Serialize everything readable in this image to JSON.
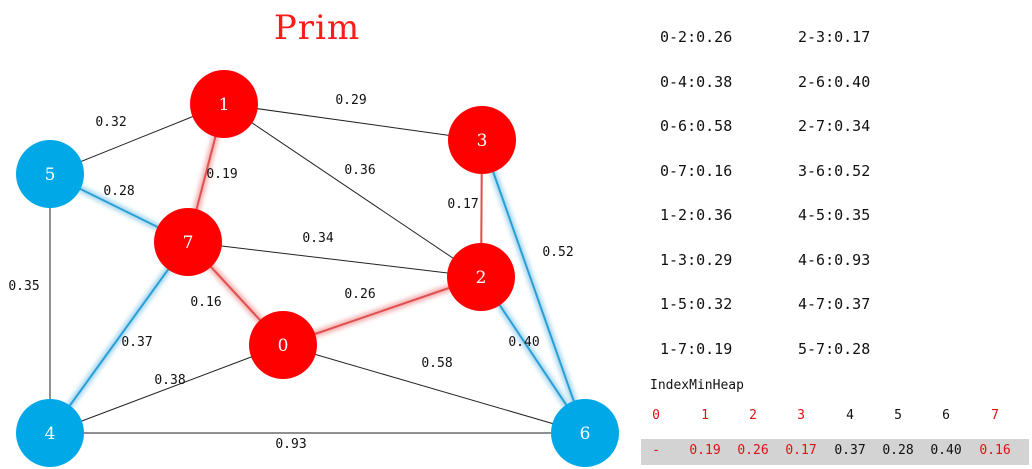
{
  "title": "Prim",
  "colors": {
    "mst_node": "#ff0000",
    "other_node": "#00a8e8",
    "mst_edge": "#e05050",
    "candidate_edge": "#2a9fd6",
    "normal_edge": "#222222",
    "heap_red": "#e01010",
    "heap_row_bg": "#d3d3d3"
  },
  "nodes": [
    {
      "id": "0",
      "status": "mst"
    },
    {
      "id": "1",
      "status": "mst"
    },
    {
      "id": "2",
      "status": "mst"
    },
    {
      "id": "3",
      "status": "mst"
    },
    {
      "id": "4",
      "status": "unvisited"
    },
    {
      "id": "5",
      "status": "unvisited"
    },
    {
      "id": "6",
      "status": "unvisited"
    },
    {
      "id": "7",
      "status": "mst"
    }
  ],
  "edges": [
    {
      "from": "1",
      "to": "5",
      "weight": "0.32",
      "kind": "normal"
    },
    {
      "from": "1",
      "to": "3",
      "weight": "0.29",
      "kind": "normal"
    },
    {
      "from": "1",
      "to": "2",
      "weight": "0.36",
      "kind": "normal"
    },
    {
      "from": "1",
      "to": "7",
      "weight": "0.19",
      "kind": "mst"
    },
    {
      "from": "5",
      "to": "7",
      "weight": "0.28",
      "kind": "candidate"
    },
    {
      "from": "5",
      "to": "4",
      "weight": "0.35",
      "kind": "normal"
    },
    {
      "from": "7",
      "to": "2",
      "weight": "0.34",
      "kind": "normal"
    },
    {
      "from": "7",
      "to": "0",
      "weight": "0.16",
      "kind": "mst"
    },
    {
      "from": "7",
      "to": "4",
      "weight": "0.37",
      "kind": "candidate"
    },
    {
      "from": "3",
      "to": "2",
      "weight": "0.17",
      "kind": "mst"
    },
    {
      "from": "3",
      "to": "6",
      "weight": "0.52",
      "kind": "candidate"
    },
    {
      "from": "0",
      "to": "2",
      "weight": "0.26",
      "kind": "mst"
    },
    {
      "from": "0",
      "to": "4",
      "weight": "0.38",
      "kind": "normal"
    },
    {
      "from": "0",
      "to": "6",
      "weight": "0.58",
      "kind": "normal"
    },
    {
      "from": "2",
      "to": "6",
      "weight": "0.40",
      "kind": "candidate"
    },
    {
      "from": "4",
      "to": "6",
      "weight": "0.93",
      "kind": "normal"
    }
  ],
  "edge_list": [
    "0-2:0.26",
    "0-4:0.38",
    "0-6:0.58",
    "0-7:0.16",
    "1-2:0.36",
    "1-3:0.29",
    "1-5:0.32",
    "1-7:0.19",
    "2-3:0.17",
    "2-6:0.40",
    "2-7:0.34",
    "3-6:0.52",
    "4-5:0.35",
    "4-6:0.93",
    "4-7:0.37",
    "5-7:0.28"
  ],
  "heap": {
    "title": "IndexMinHeap",
    "indices": [
      {
        "text": "0",
        "color": "red"
      },
      {
        "text": "1",
        "color": "red"
      },
      {
        "text": "2",
        "color": "red"
      },
      {
        "text": "3",
        "color": "red"
      },
      {
        "text": "4",
        "color": "black"
      },
      {
        "text": "5",
        "color": "black"
      },
      {
        "text": "6",
        "color": "black"
      },
      {
        "text": "7",
        "color": "red"
      }
    ],
    "values": [
      {
        "text": "-",
        "color": "red"
      },
      {
        "text": "0.19",
        "color": "red"
      },
      {
        "text": "0.26",
        "color": "red"
      },
      {
        "text": "0.17",
        "color": "red"
      },
      {
        "text": "0.37",
        "color": "black"
      },
      {
        "text": "0.28",
        "color": "black"
      },
      {
        "text": "0.40",
        "color": "black"
      },
      {
        "text": "0.16",
        "color": "red"
      }
    ]
  }
}
